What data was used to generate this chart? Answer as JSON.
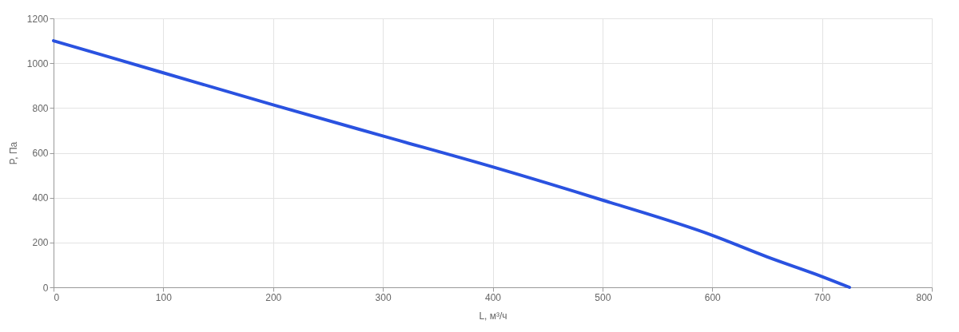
{
  "chart_data": {
    "type": "line",
    "xlabel": "L, м³/ч",
    "ylabel": "P, Па",
    "x": [
      0,
      100,
      200,
      300,
      400,
      500,
      600,
      650,
      700,
      725
    ],
    "series": [
      {
        "color": "#2a52e0",
        "values": [
          1100,
          957,
          814,
          675,
          537,
          389,
          232,
          136,
          48,
          0
        ]
      }
    ],
    "xlim": [
      0,
      800
    ],
    "xticks": [
      0,
      100,
      200,
      300,
      400,
      500,
      600,
      700,
      800
    ],
    "ylim": [
      0,
      1200
    ],
    "yticks": [
      0,
      200,
      400,
      600,
      800,
      1000,
      1200
    ],
    "grid": true,
    "legend": false,
    "marker": "none",
    "line_style": "solid"
  }
}
